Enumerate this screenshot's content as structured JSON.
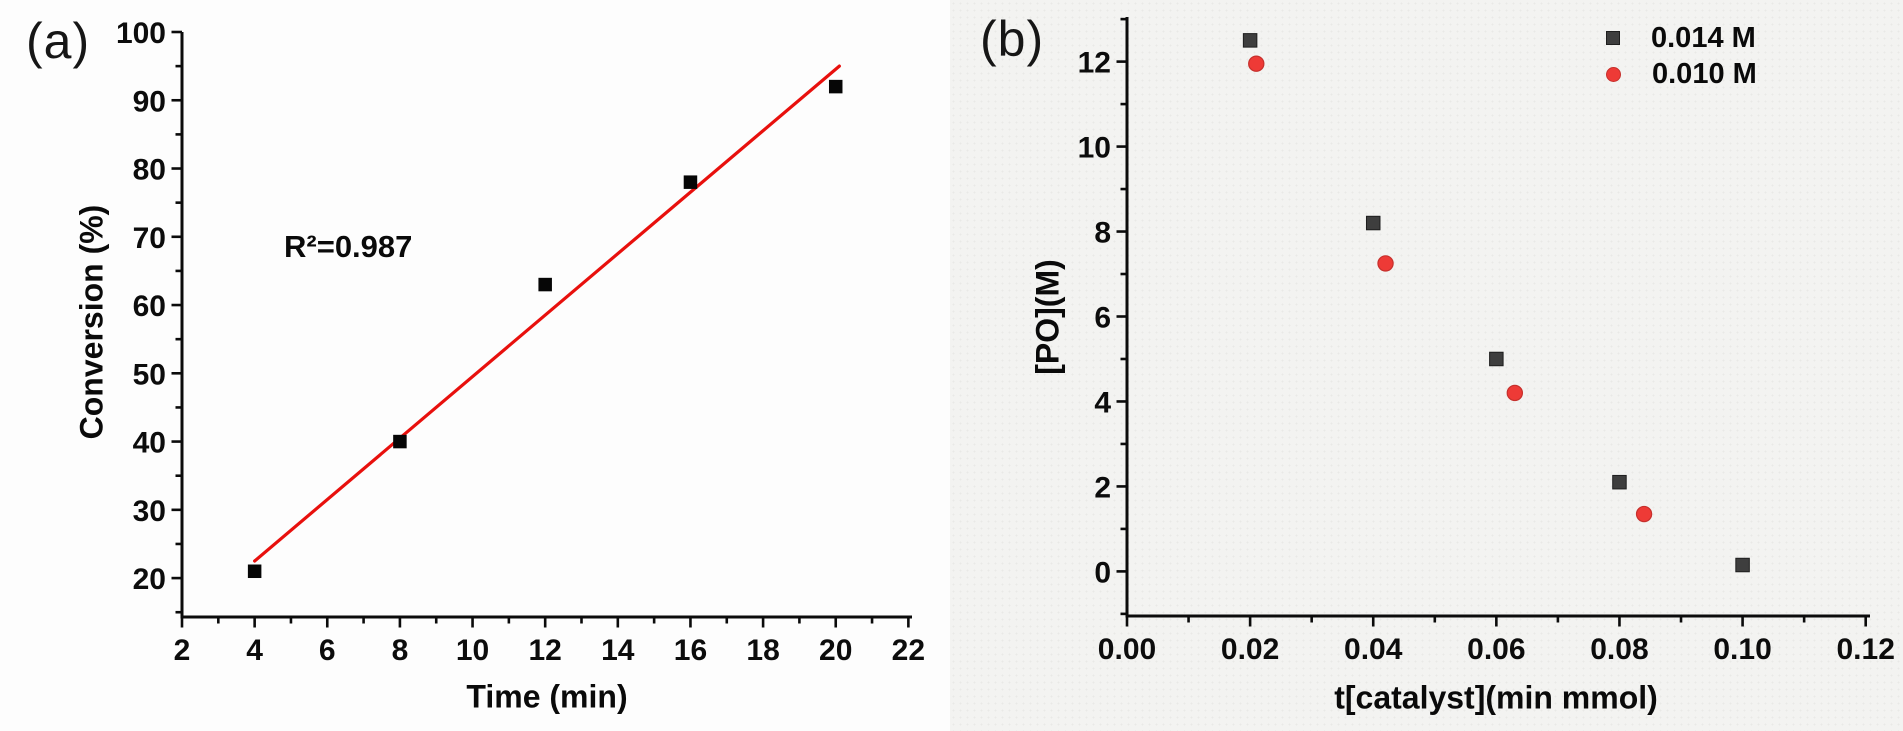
{
  "figure_title": "",
  "chart_data": [
    {
      "type": "scatter",
      "panel_label": "(a)",
      "xlabel": "Time (min)",
      "ylabel": "Conversion (%)",
      "xlim": [
        2,
        22.1
      ],
      "ylim": [
        14.3,
        100
      ],
      "x_major_ticks": [
        2,
        4,
        6,
        8,
        10,
        12,
        14,
        16,
        18,
        20,
        22
      ],
      "x_tick_labels": [
        "2",
        "4",
        "6",
        "8",
        "10",
        "12",
        "14",
        "16",
        "18",
        "20",
        "22"
      ],
      "x_minor_step": 1,
      "y_major_ticks": [
        20,
        30,
        40,
        50,
        60,
        70,
        80,
        90,
        100
      ],
      "y_tick_labels": [
        "20",
        "30",
        "40",
        "50",
        "60",
        "70",
        "80",
        "90",
        "100"
      ],
      "y_minor_step": 5,
      "grid": false,
      "series": [
        {
          "name": "conversion",
          "marker": "square",
          "color": "#060606",
          "x": [
            4,
            8,
            12,
            16,
            20
          ],
          "y": [
            21,
            40,
            63,
            78,
            92
          ]
        }
      ],
      "fit_line": {
        "color": "#e8100d",
        "x_start": 4.0,
        "y_start": 22.5,
        "x_end": 20.1,
        "y_end": 95.0
      },
      "r_squared": 0.987,
      "annotation": "R²=0.987"
    },
    {
      "type": "scatter",
      "panel_label": "(b)",
      "xlabel": "t[catalyst](min mmol)",
      "ylabel": "[PO](M)",
      "xlim": [
        0,
        0.1207
      ],
      "ylim": [
        -1.05,
        13.05
      ],
      "x_major_ticks": [
        0,
        0.02,
        0.04,
        0.06,
        0.08,
        0.1,
        0.12
      ],
      "x_tick_labels": [
        "0.00",
        "0.02",
        "0.04",
        "0.06",
        "0.08",
        "0.10",
        "0.12"
      ],
      "x_minor_step": 0.01,
      "y_major_ticks": [
        0,
        2,
        4,
        6,
        8,
        10,
        12
      ],
      "y_tick_labels": [
        "0",
        "2",
        "4",
        "6",
        "8",
        "10",
        "12"
      ],
      "y_minor_step": 1,
      "grid": false,
      "legend_position": "top-right",
      "series": [
        {
          "name": "0.014 M",
          "marker": "square",
          "color": "#3e3e3e",
          "edge_color": "#1e1e1e",
          "x": [
            0.02,
            0.04,
            0.06,
            0.08,
            0.1
          ],
          "y": [
            12.5,
            8.2,
            5.0,
            2.1,
            0.15
          ]
        },
        {
          "name": "0.010 M",
          "marker": "circle",
          "color": "#ee3a36",
          "edge_color": "#c6302c",
          "x": [
            0.021,
            0.042,
            0.063,
            0.084
          ],
          "y": [
            11.95,
            7.25,
            4.2,
            1.35
          ]
        }
      ]
    }
  ]
}
